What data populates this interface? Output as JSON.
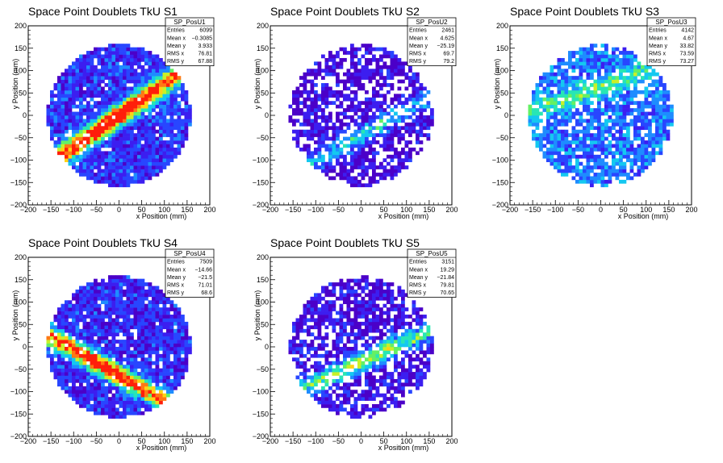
{
  "chart_data": [
    {
      "type": "heatmap",
      "title": "Space Point Doublets TkU S1",
      "xlabel": "x Position (mm)",
      "ylabel": "y Position (mm)",
      "xlim": [
        -200,
        200
      ],
      "ylim": [
        -200,
        200
      ],
      "xticks": [
        "−200",
        "−150",
        "−100",
        "−50",
        "0",
        "50",
        "100",
        "150",
        "200"
      ],
      "yticks": [
        "−200",
        "−150",
        "−100",
        "−50",
        "0",
        "50",
        "100",
        "150",
        "200"
      ],
      "stats": {
        "name": "SP_PosU1",
        "rows": [
          {
            "label": "Entries",
            "value": "6099"
          },
          {
            "label": "Mean x",
            "value": "−0.3085"
          },
          {
            "label": "Mean y",
            "value": "3.933"
          },
          {
            "label": "RMS x",
            "value": "76.81"
          },
          {
            "label": "RMS y",
            "value": "67.88"
          }
        ]
      },
      "pattern": {
        "band_angle_deg": 35,
        "band_offset": 0,
        "band_strength": 1.0,
        "base": 0.18,
        "holes": 0.06
      }
    },
    {
      "type": "heatmap",
      "title": "Space Point Doublets TkU S2",
      "xlabel": "x Position (mm)",
      "ylabel": "y Position (mm)",
      "xlim": [
        -200,
        200
      ],
      "ylim": [
        -200,
        200
      ],
      "xticks": [
        "−200",
        "−150",
        "−100",
        "−50",
        "0",
        "50",
        "100",
        "150",
        "200"
      ],
      "yticks": [
        "−200",
        "−150",
        "−100",
        "−50",
        "0",
        "50",
        "100",
        "150",
        "200"
      ],
      "stats": {
        "name": "SP_PosU2",
        "rows": [
          {
            "label": "Entries",
            "value": "2461"
          },
          {
            "label": "Mean x",
            "value": "4.625"
          },
          {
            "label": "Mean y",
            "value": "−25.19"
          },
          {
            "label": "RMS x",
            "value": "69.7"
          },
          {
            "label": "RMS y",
            "value": "79.2"
          }
        ]
      },
      "pattern": {
        "band_angle_deg": 30,
        "band_offset": -40,
        "band_strength": 0.35,
        "base": 0.08,
        "holes": 0.32
      }
    },
    {
      "type": "heatmap",
      "title": "Space Point Doublets TkU S3",
      "xlabel": "x Position (mm)",
      "ylabel": "y Position (mm)",
      "xlim": [
        -200,
        200
      ],
      "ylim": [
        -200,
        200
      ],
      "xticks": [
        "−200",
        "−150",
        "−100",
        "−50",
        "0",
        "50",
        "100",
        "150",
        "200"
      ],
      "yticks": [
        "−200",
        "−150",
        "−100",
        "−50",
        "0",
        "50",
        "100",
        "150",
        "200"
      ],
      "stats": {
        "name": "SP_PosU3",
        "rows": [
          {
            "label": "Entries",
            "value": "4142"
          },
          {
            "label": "Mean x",
            "value": "4.67"
          },
          {
            "label": "Mean y",
            "value": "33.82"
          },
          {
            "label": "RMS x",
            "value": "73.59"
          },
          {
            "label": "RMS y",
            "value": "73.27"
          }
        ]
      },
      "pattern": {
        "band_angle_deg": 20,
        "band_offset": 60,
        "band_strength": 0.3,
        "base": 0.28,
        "holes": 0.18
      }
    },
    {
      "type": "heatmap",
      "title": "Space Point Doublets TkU S4",
      "xlabel": "x Position (mm)",
      "ylabel": "y Position (mm)",
      "xlim": [
        -200,
        200
      ],
      "ylim": [
        -200,
        200
      ],
      "xticks": [
        "−200",
        "−150",
        "−100",
        "−50",
        "0",
        "50",
        "100",
        "150",
        "200"
      ],
      "yticks": [
        "−200",
        "−150",
        "−100",
        "−50",
        "0",
        "50",
        "100",
        "150",
        "200"
      ],
      "stats": {
        "name": "SP_PosU4",
        "rows": [
          {
            "label": "Entries",
            "value": "7509"
          },
          {
            "label": "Mean x",
            "value": "−14.66"
          },
          {
            "label": "Mean y",
            "value": "−21.5"
          },
          {
            "label": "RMS x",
            "value": "71.01"
          },
          {
            "label": "RMS y",
            "value": "68.6"
          }
        ]
      },
      "pattern": {
        "band_angle_deg": -30,
        "band_offset": -55,
        "band_strength": 0.9,
        "base": 0.16,
        "holes": 0.07
      }
    },
    {
      "type": "heatmap",
      "title": "Space Point Doublets TkU S5",
      "xlabel": "x Position (mm)",
      "ylabel": "y Position (mm)",
      "xlim": [
        -200,
        200
      ],
      "ylim": [
        -200,
        200
      ],
      "xticks": [
        "−200",
        "−150",
        "−100",
        "−50",
        "0",
        "50",
        "100",
        "150",
        "200"
      ],
      "yticks": [
        "−200",
        "−150",
        "−100",
        "−50",
        "0",
        "50",
        "100",
        "150",
        "200"
      ],
      "stats": {
        "name": "SP_PosU5",
        "rows": [
          {
            "label": "Entries",
            "value": "3151"
          },
          {
            "label": "Mean x",
            "value": "19.29"
          },
          {
            "label": "Mean y",
            "value": "−21.84"
          },
          {
            "label": "RMS x",
            "value": "79.81"
          },
          {
            "label": "RMS y",
            "value": "70.65"
          }
        ]
      },
      "pattern": {
        "band_angle_deg": 25,
        "band_offset": -30,
        "band_strength": 0.55,
        "base": 0.1,
        "holes": 0.3
      }
    }
  ],
  "colors": {
    "palette": [
      "#4b00c8",
      "#3c1ef0",
      "#2846ff",
      "#1e8cff",
      "#14c8f0",
      "#28e6b4",
      "#64f064",
      "#c8f028",
      "#ffd214",
      "#ff7814",
      "#ff1e0a"
    ]
  }
}
